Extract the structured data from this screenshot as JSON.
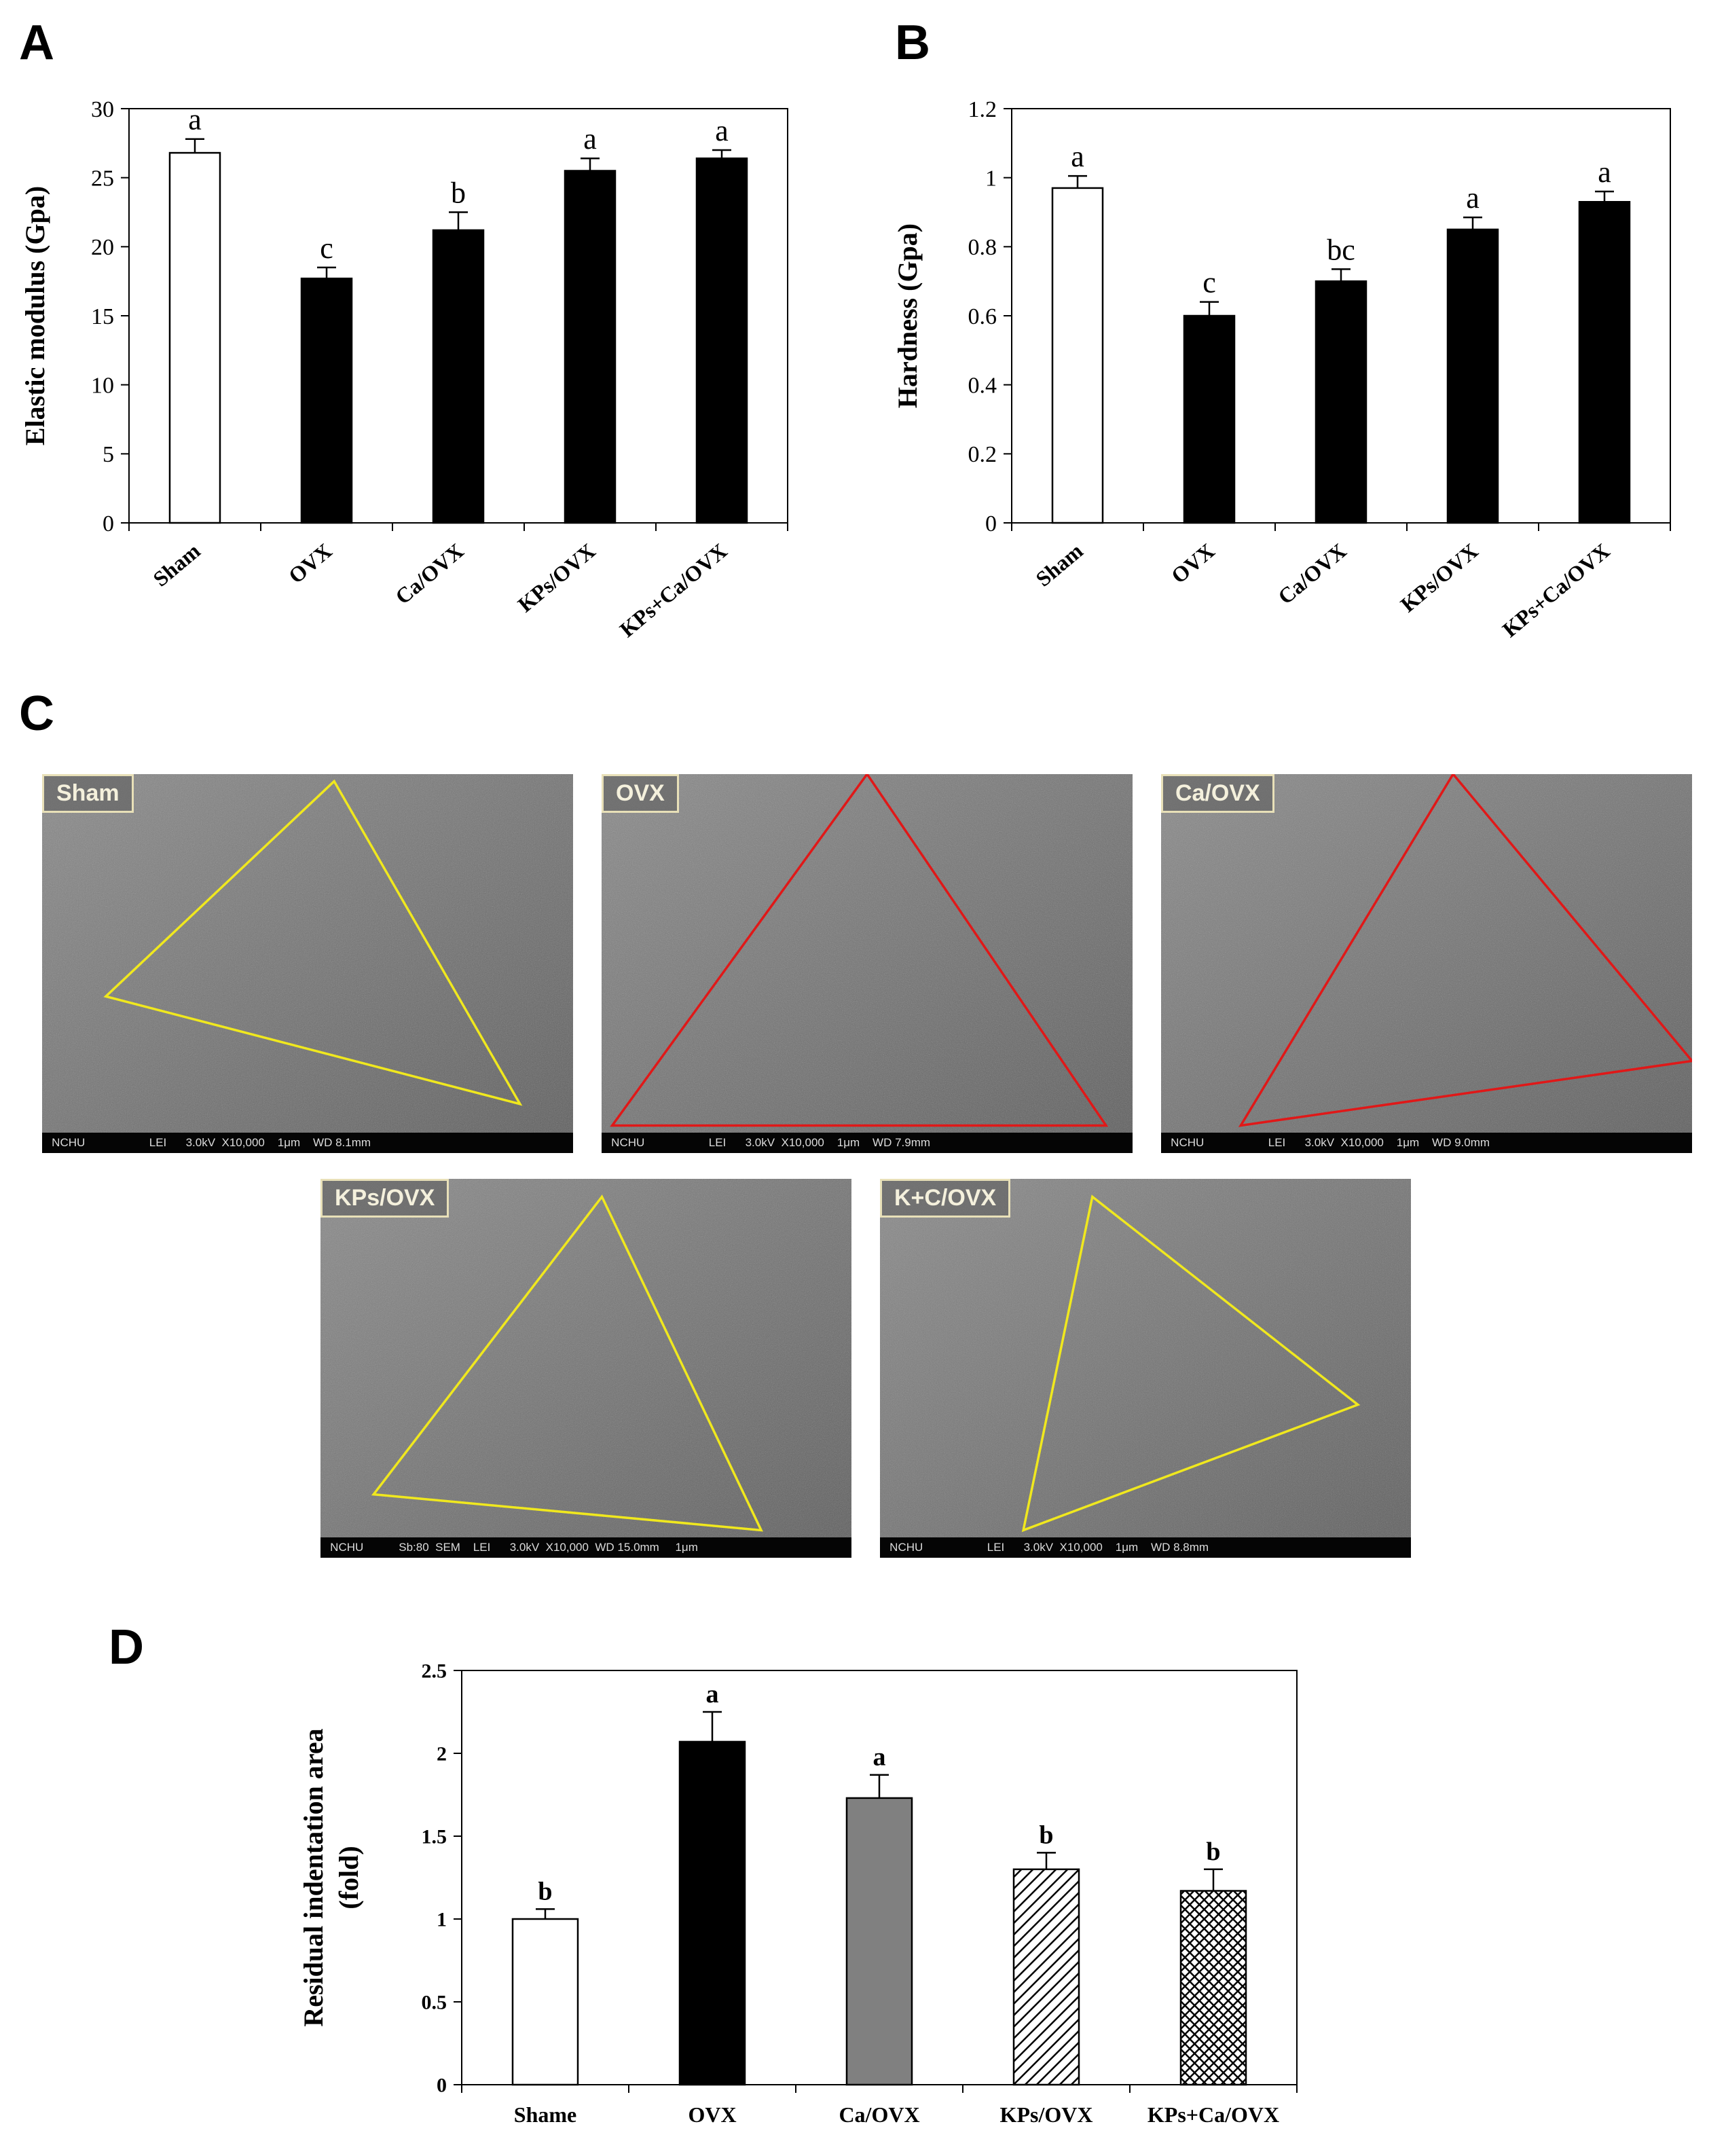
{
  "panels": {
    "A": "A",
    "B": "B",
    "C": "C",
    "D": "D"
  },
  "chart_data": [
    {
      "id": "A",
      "type": "bar",
      "title": "",
      "ylabel": "Elastic modulus (Gpa)",
      "xlabel": "",
      "ylim": [
        0,
        30
      ],
      "yticks": [
        "0",
        "5",
        "10",
        "15",
        "20",
        "25",
        "30"
      ],
      "categories": [
        "Sham",
        "OVX",
        "Ca/OVX",
        "KPs/OVX",
        "KPs+Ca/OVX"
      ],
      "values": [
        26.8,
        17.7,
        21.2,
        25.5,
        26.4
      ],
      "errors": [
        1.0,
        0.8,
        1.3,
        0.9,
        0.6
      ],
      "letters": [
        "a",
        "c",
        "b",
        "a",
        "a"
      ],
      "fills": [
        "#ffffff",
        "#000000",
        "#000000",
        "#000000",
        "#000000"
      ]
    },
    {
      "id": "B",
      "type": "bar",
      "title": "",
      "ylabel": "Hardness (Gpa)",
      "xlabel": "",
      "ylim": [
        0,
        1.2
      ],
      "yticks": [
        "0",
        "0.2",
        "0.4",
        "0.6",
        "0.8",
        "1",
        "1.2"
      ],
      "categories": [
        "Sham",
        "OVX",
        "Ca/OVX",
        "KPs/OVX",
        "KPs+Ca/OVX"
      ],
      "values": [
        0.97,
        0.6,
        0.7,
        0.85,
        0.93
      ],
      "errors": [
        0.035,
        0.04,
        0.035,
        0.035,
        0.03
      ],
      "letters": [
        "a",
        "c",
        "bc",
        "a",
        "a"
      ],
      "fills": [
        "#ffffff",
        "#000000",
        "#000000",
        "#000000",
        "#000000"
      ]
    },
    {
      "id": "D",
      "type": "bar",
      "title": "",
      "ylabel": "Residual indentation area (fold)",
      "xlabel": "",
      "ylim": [
        0,
        2.5
      ],
      "yticks": [
        "0",
        "0.5",
        "1",
        "1.5",
        "2",
        "2.5"
      ],
      "categories": [
        "Shame",
        "OVX",
        "Ca/OVX",
        "KPs/OVX",
        "KPs+Ca/OVX"
      ],
      "values": [
        1.0,
        2.07,
        1.73,
        1.3,
        1.17
      ],
      "errors": [
        0.06,
        0.18,
        0.14,
        0.1,
        0.13
      ],
      "letters": [
        "b",
        "a",
        "a",
        "b",
        "b"
      ],
      "fills": [
        "#ffffff",
        "#000000",
        "#808080",
        "hatch-diag",
        "hatch-cross"
      ]
    }
  ],
  "sem_images": [
    {
      "label": "Sham",
      "info": "NCHU                    LEI      3.0kV  X10,000    1μm    WD 8.1mm",
      "outline": "#f0e81e"
    },
    {
      "label": "OVX",
      "info": "NCHU                    LEI      3.0kV  X10,000    1μm    WD 7.9mm",
      "outline": "#e01818"
    },
    {
      "label": "Ca/OVX",
      "info": "NCHU                    LEI      3.0kV  X10,000    1μm    WD 9.0mm",
      "outline": "#e01818"
    },
    {
      "label": "KPs/OVX",
      "info": "NCHU           Sb:80  SEM    LEI      3.0kV  X10,000  WD 15.0mm     1μm",
      "outline": "#f0e81e"
    },
    {
      "label": "K+C/OVX",
      "info": "NCHU                    LEI      3.0kV  X10,000    1μm    WD 8.8mm",
      "outline": "#f0e81e"
    }
  ]
}
